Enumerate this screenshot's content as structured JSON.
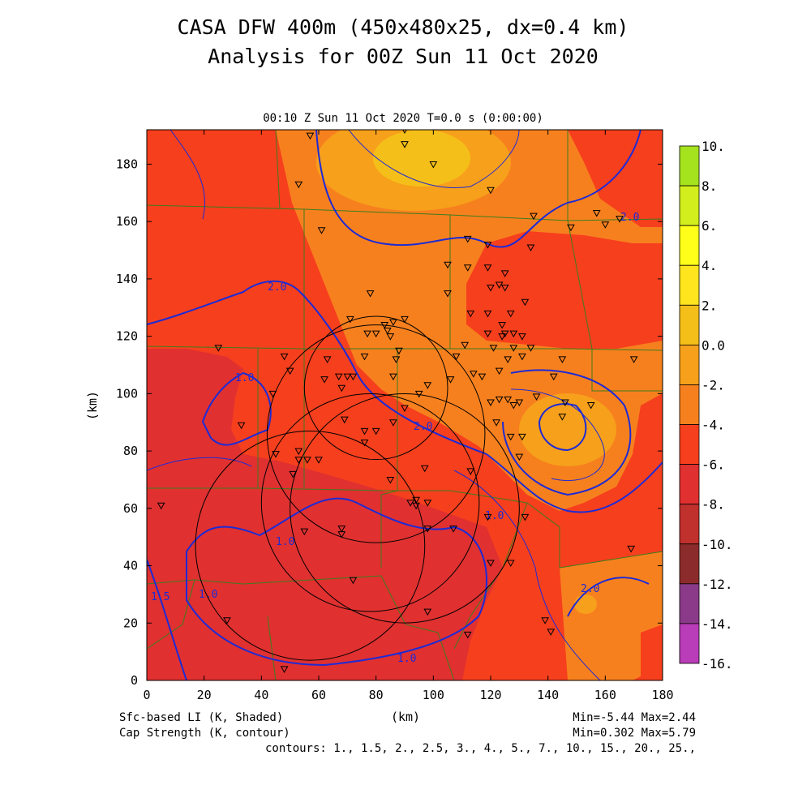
{
  "title_line1": "CASA DFW 400m (450x480x25, dx=0.4 km)",
  "title_line2": "Analysis for 00Z Sun 11 Oct 2020",
  "subtitle": "00:10 Z Sun 11 Oct 2020   T=0.0 s (0:00:00)",
  "axes": {
    "x_label": "(km)",
    "y_label": "(km)",
    "x_ticks": [
      "0",
      "20",
      "40",
      "60",
      "80",
      "100",
      "120",
      "140",
      "160",
      "180"
    ],
    "y_ticks": [
      "0",
      "20",
      "40",
      "60",
      "80",
      "100",
      "120",
      "140",
      "160",
      "180"
    ],
    "x_range": [
      0,
      180
    ],
    "y_range": [
      0,
      192
    ]
  },
  "footer": {
    "shaded_label": "Sfc-based LI (K, Shaded)",
    "contour_label": "Cap Strength (K, contour)",
    "shaded_minmax": "Min=-5.44 Max=2.44",
    "contour_minmax": "Min=0.302 Max=5.79",
    "contours_list": "contours: 1., 1.5, 2., 2.5, 3., 4., 5., 7., 10., 15., 20., 25.,"
  },
  "colorbar": {
    "labels": [
      "10.",
      "8.",
      "6.",
      "4.",
      "2.",
      "0.0",
      "-2.",
      "-4.",
      "-6.",
      "-8.",
      "-10.",
      "-12.",
      "-14.",
      "-16."
    ],
    "colors": [
      "#a6e31f",
      "#d2ee1c",
      "#ffff1a",
      "#ffe51e",
      "#f5bf19",
      "#f7a01b",
      "#f7801e",
      "#f63f1d",
      "#e03030",
      "#c0302c",
      "#8b2b2b",
      "#8a3a88",
      "#b93cb8",
      "#d84fe0"
    ]
  },
  "contour_labels": [
    "2.0",
    "2.0",
    "2.0",
    "1.0",
    "1.0",
    "1.0",
    "1.0",
    "1.0",
    "1.5",
    "2.0"
  ],
  "chart_data": {
    "type": "heatmap",
    "field": "Sfc-based LI (K)",
    "contour_field": "Cap Strength (K)",
    "xlim": [
      0,
      180
    ],
    "ylim": [
      0,
      192
    ],
    "shaded_min": -5.44,
    "shaded_max": 2.44,
    "contour_min": 0.302,
    "contour_max": 5.79,
    "contour_levels": [
      1,
      1.5,
      2,
      2.5,
      3,
      4,
      5,
      7,
      10,
      15,
      20,
      25
    ],
    "radar_rings_km": [
      {
        "x": 80,
        "y": 102,
        "r": 25
      },
      {
        "x": 80,
        "y": 86,
        "r": 38
      },
      {
        "x": 78,
        "y": 62,
        "r": 38
      },
      {
        "x": 90,
        "y": 60,
        "r": 40
      },
      {
        "x": 57,
        "y": 47,
        "r": 40
      }
    ],
    "stations_km": [
      [
        57,
        190
      ],
      [
        90,
        192
      ],
      [
        90,
        187
      ],
      [
        100,
        180
      ],
      [
        53,
        173
      ],
      [
        120,
        171
      ],
      [
        135,
        162
      ],
      [
        165,
        161
      ],
      [
        160,
        159
      ],
      [
        157,
        163
      ],
      [
        148,
        158
      ],
      [
        61,
        157
      ],
      [
        112,
        154
      ],
      [
        119,
        152
      ],
      [
        134,
        151
      ],
      [
        105,
        145
      ],
      [
        112,
        144
      ],
      [
        119,
        144
      ],
      [
        125,
        142
      ],
      [
        105,
        135
      ],
      [
        78,
        135
      ],
      [
        120,
        137
      ],
      [
        123,
        138
      ],
      [
        125,
        137
      ],
      [
        132,
        132
      ],
      [
        127,
        128
      ],
      [
        119,
        128
      ],
      [
        113,
        128
      ],
      [
        71,
        126
      ],
      [
        86,
        125
      ],
      [
        90,
        126
      ],
      [
        83,
        124
      ],
      [
        84,
        122
      ],
      [
        77,
        121
      ],
      [
        80,
        121
      ],
      [
        85,
        120
      ],
      [
        124,
        124
      ],
      [
        125,
        121
      ],
      [
        128,
        121
      ],
      [
        131,
        120
      ],
      [
        119,
        121
      ],
      [
        124,
        120
      ],
      [
        134,
        116
      ],
      [
        128,
        116
      ],
      [
        121,
        116
      ],
      [
        111,
        117
      ],
      [
        108,
        113
      ],
      [
        76,
        113
      ],
      [
        88,
        115
      ],
      [
        87,
        112
      ],
      [
        126,
        112
      ],
      [
        131,
        113
      ],
      [
        145,
        112
      ],
      [
        170,
        112
      ],
      [
        25,
        116
      ],
      [
        48,
        113
      ],
      [
        50,
        108
      ],
      [
        63,
        112
      ],
      [
        62,
        105
      ],
      [
        70,
        106
      ],
      [
        72,
        106
      ],
      [
        68,
        102
      ],
      [
        67,
        106
      ],
      [
        86,
        106
      ],
      [
        114,
        107
      ],
      [
        117,
        106
      ],
      [
        106,
        105
      ],
      [
        123,
        108
      ],
      [
        142,
        106
      ],
      [
        98,
        103
      ],
      [
        95,
        100
      ],
      [
        136,
        99
      ],
      [
        120,
        97
      ],
      [
        123,
        98
      ],
      [
        126,
        98
      ],
      [
        130,
        97
      ],
      [
        128,
        96
      ],
      [
        146,
        97
      ],
      [
        145,
        92
      ],
      [
        155,
        96
      ],
      [
        90,
        95
      ],
      [
        86,
        90
      ],
      [
        69,
        91
      ],
      [
        76,
        87
      ],
      [
        80,
        87
      ],
      [
        33,
        89
      ],
      [
        53,
        80
      ],
      [
        44,
        100
      ],
      [
        45,
        79
      ],
      [
        51,
        72
      ],
      [
        53,
        77
      ],
      [
        56,
        77
      ],
      [
        60,
        77
      ],
      [
        76,
        83
      ],
      [
        97,
        74
      ],
      [
        131,
        85
      ],
      [
        127,
        85
      ],
      [
        122,
        90
      ],
      [
        113,
        73
      ],
      [
        130,
        78
      ],
      [
        132,
        57
      ],
      [
        98,
        62
      ],
      [
        119,
        57
      ],
      [
        92,
        62
      ],
      [
        94,
        63
      ],
      [
        94,
        61
      ],
      [
        85,
        70
      ],
      [
        5,
        61
      ],
      [
        55,
        52
      ],
      [
        68,
        51
      ],
      [
        68,
        53
      ],
      [
        98,
        53
      ],
      [
        120,
        41
      ],
      [
        127,
        41
      ],
      [
        107,
        53
      ],
      [
        98,
        24
      ],
      [
        72,
        35
      ],
      [
        48,
        4
      ],
      [
        28,
        21
      ],
      [
        112,
        16
      ],
      [
        141,
        17
      ],
      [
        139,
        21
      ],
      [
        169,
        46
      ]
    ]
  }
}
